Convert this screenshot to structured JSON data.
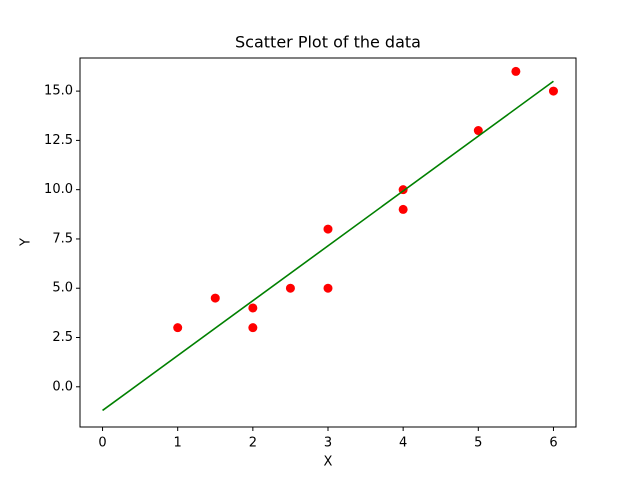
{
  "chart_data": {
    "type": "scatter",
    "title": "Scatter Plot of the data",
    "x_label": "X",
    "y_label": "Y",
    "x": [
      1,
      1.5,
      2,
      2,
      2.5,
      3,
      3,
      4,
      4,
      5,
      5.5,
      6
    ],
    "values": [
      3,
      4.5,
      4,
      3,
      5,
      8,
      5,
      10,
      9,
      13,
      16,
      15
    ],
    "color": "#ff0000",
    "fit_line": {
      "x": [
        0,
        6
      ],
      "values": [
        -1.2,
        15.5
      ],
      "color": "#008000"
    },
    "xlim": [
      -0.3,
      6.3
    ],
    "ylim": [
      -2.04,
      16.68
    ],
    "xticks": [
      0,
      1,
      2,
      3,
      4,
      5,
      6
    ],
    "yticks": [
      {
        "value": 0,
        "label": "0.0"
      },
      {
        "value": 2.5,
        "label": "2.5"
      },
      {
        "value": 5,
        "label": "5.0"
      },
      {
        "value": 7.5,
        "label": "7.5"
      },
      {
        "value": 10,
        "label": "10.0"
      },
      {
        "value": 12.5,
        "label": "12.5"
      },
      {
        "value": 15,
        "label": "15.0"
      }
    ],
    "grid": false
  }
}
